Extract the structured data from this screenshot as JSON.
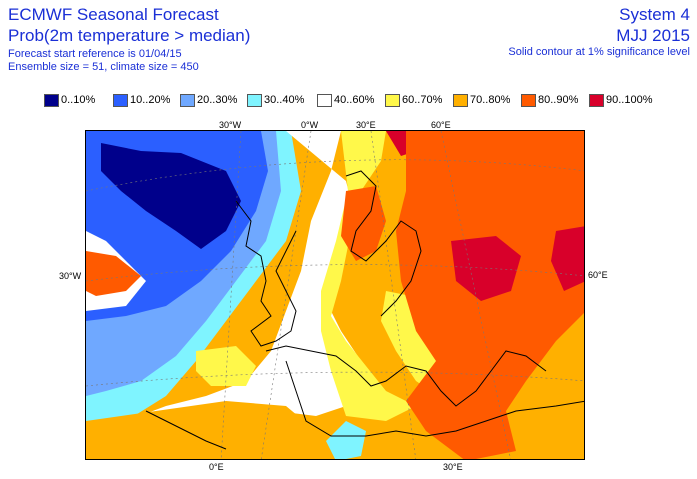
{
  "header": {
    "title": "ECMWF Seasonal Forecast",
    "subtitle": "Prob(2m temperature > median)",
    "line3": "Forecast start reference is 01/04/15",
    "line4": "Ensemble size = 51, climate size = 450",
    "system": "System 4",
    "period": "MJJ 2015",
    "note": "Solid contour at 1% significance level"
  },
  "legend": [
    {
      "label": "0..10%",
      "color": "#00008b"
    },
    {
      "label": "10..20%",
      "color": "#2b5fff"
    },
    {
      "label": "20..30%",
      "color": "#6fa8ff"
    },
    {
      "label": "30..40%",
      "color": "#7ff4ff"
    },
    {
      "label": "40..60%",
      "color": "#ffffff"
    },
    {
      "label": "60..70%",
      "color": "#fff84a"
    },
    {
      "label": "70..80%",
      "color": "#ffb000"
    },
    {
      "label": "80..90%",
      "color": "#ff5a00"
    },
    {
      "label": "90..100%",
      "color": "#d8002a"
    }
  ],
  "axes": {
    "top": [
      "30°W",
      "0°W",
      "30°E",
      "60°E"
    ],
    "left": "30°W",
    "right": "60°E",
    "bottom": [
      "0°E",
      "30°E"
    ]
  }
}
